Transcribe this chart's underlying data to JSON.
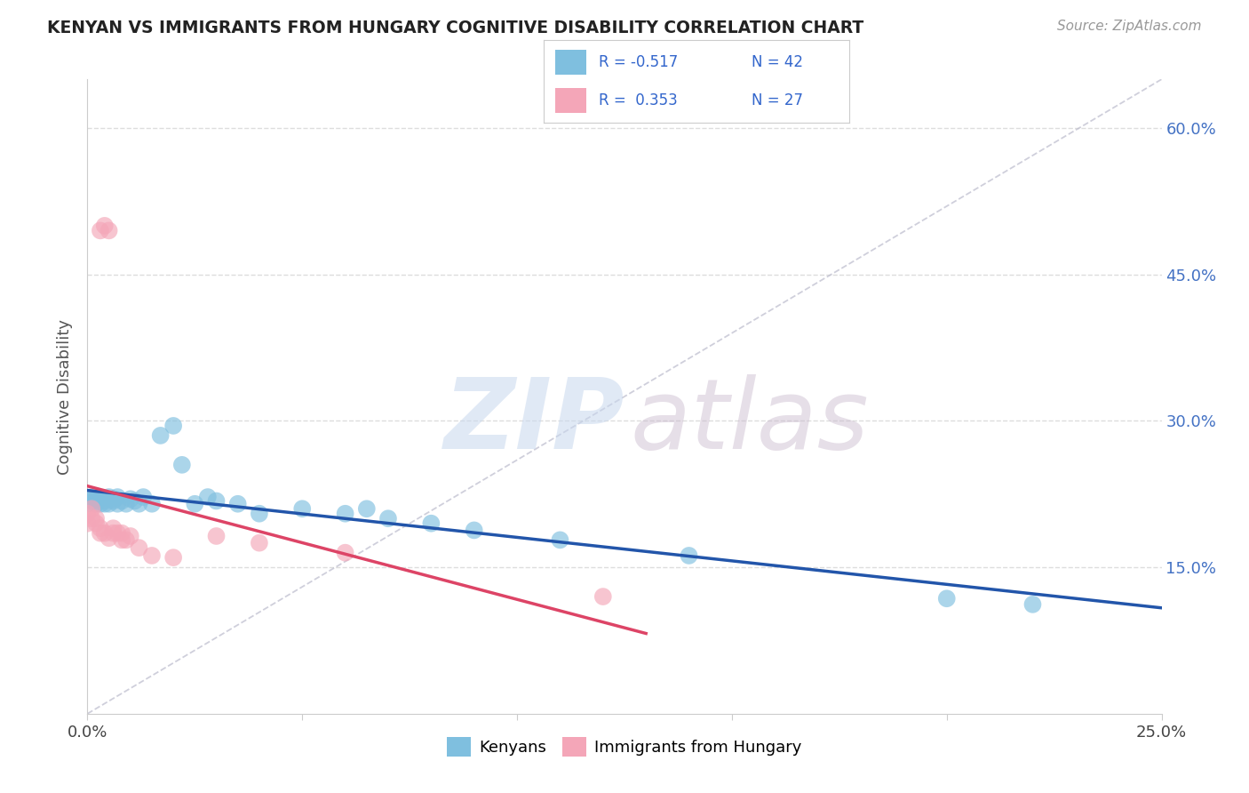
{
  "title": "KENYAN VS IMMIGRANTS FROM HUNGARY COGNITIVE DISABILITY CORRELATION CHART",
  "source": "Source: ZipAtlas.com",
  "ylabel": "Cognitive Disability",
  "xlim": [
    0.0,
    0.25
  ],
  "ylim": [
    0.0,
    0.65
  ],
  "color_blue": "#7fbfdf",
  "color_pink": "#f4a6b8",
  "trendline_blue": "#2255aa",
  "trendline_pink": "#dd4466",
  "ref_line_color": "#bbbbcc",
  "grid_color": "#dddddd",
  "background_color": "#ffffff",
  "blue_scatter_x": [
    0.0,
    0.0,
    0.001,
    0.001,
    0.002,
    0.002,
    0.002,
    0.003,
    0.003,
    0.004,
    0.004,
    0.005,
    0.005,
    0.006,
    0.006,
    0.007,
    0.007,
    0.008,
    0.009,
    0.01,
    0.011,
    0.012,
    0.013,
    0.015,
    0.017,
    0.02,
    0.022,
    0.025,
    0.028,
    0.03,
    0.035,
    0.04,
    0.05,
    0.06,
    0.065,
    0.07,
    0.08,
    0.09,
    0.11,
    0.14,
    0.2,
    0.22
  ],
  "blue_scatter_y": [
    0.22,
    0.215,
    0.222,
    0.218,
    0.215,
    0.22,
    0.218,
    0.215,
    0.22,
    0.218,
    0.215,
    0.222,
    0.215,
    0.22,
    0.218,
    0.215,
    0.222,
    0.218,
    0.215,
    0.22,
    0.218,
    0.215,
    0.222,
    0.215,
    0.285,
    0.295,
    0.255,
    0.215,
    0.222,
    0.218,
    0.215,
    0.205,
    0.21,
    0.205,
    0.21,
    0.2,
    0.195,
    0.188,
    0.178,
    0.162,
    0.118,
    0.112
  ],
  "pink_scatter_x": [
    0.0,
    0.0,
    0.001,
    0.001,
    0.002,
    0.002,
    0.003,
    0.003,
    0.003,
    0.004,
    0.004,
    0.005,
    0.005,
    0.006,
    0.006,
    0.007,
    0.008,
    0.008,
    0.009,
    0.01,
    0.012,
    0.015,
    0.02,
    0.03,
    0.04,
    0.06,
    0.12
  ],
  "pink_scatter_y": [
    0.205,
    0.195,
    0.21,
    0.2,
    0.195,
    0.2,
    0.495,
    0.185,
    0.19,
    0.5,
    0.185,
    0.495,
    0.18,
    0.19,
    0.185,
    0.185,
    0.178,
    0.185,
    0.178,
    0.182,
    0.17,
    0.162,
    0.16,
    0.182,
    0.175,
    0.165,
    0.12
  ],
  "watermark_zip_color": "#c8d8ee",
  "watermark_atlas_color": "#c8b8cc"
}
